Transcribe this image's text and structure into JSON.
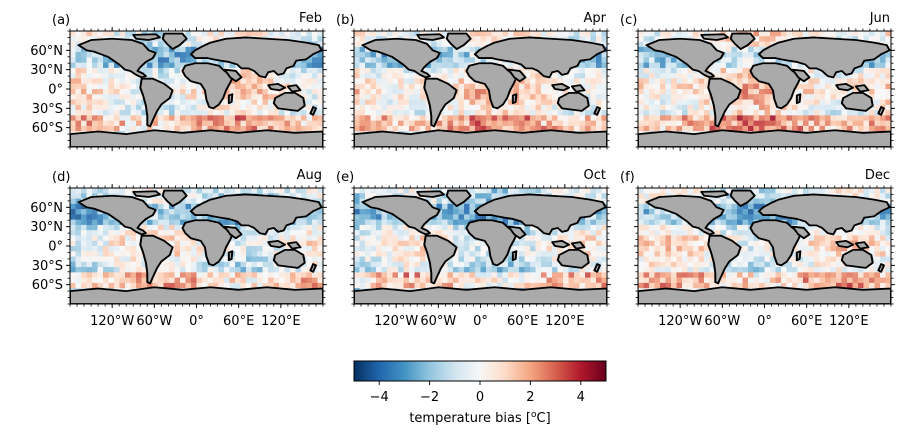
{
  "chart_data": {
    "type": "heatmap",
    "description_units": "temperature bias",
    "panels": [
      {
        "letter": "(a)",
        "month": "Feb"
      },
      {
        "letter": "(b)",
        "month": "Apr"
      },
      {
        "letter": "(c)",
        "month": "Jun"
      },
      {
        "letter": "(d)",
        "month": "Aug"
      },
      {
        "letter": "(e)",
        "month": "Oct"
      },
      {
        "letter": "(f)",
        "month": "Dec"
      }
    ],
    "lat_ticks": [
      "60°N",
      "30°N",
      "0°",
      "30°S",
      "60°S"
    ],
    "lat_tick_values": [
      60,
      30,
      0,
      -30,
      -60
    ],
    "lon_ticks": [
      "120°W",
      "60°W",
      "0°",
      "60°E",
      "120°E"
    ],
    "lon_tick_values": [
      -120,
      -60,
      0,
      60,
      120
    ],
    "xlim": [
      -180,
      180
    ],
    "ylim": [
      -90,
      90
    ],
    "colorbar": {
      "label": "temperature bias [",
      "label_unit": "o",
      "label_end": "C]",
      "ticks": [
        "−4",
        "−2",
        "0",
        "2",
        "4"
      ],
      "tick_values": [
        -4,
        -2,
        0,
        2,
        4
      ],
      "range": [
        -5,
        5
      ],
      "colormap": "RdBu_r",
      "colors": [
        "#053061",
        "#2166ac",
        "#4393c3",
        "#92c5de",
        "#d1e5f0",
        "#f7f7f7",
        "#fddbc7",
        "#f4a582",
        "#d6604d",
        "#b2182b",
        "#67001f"
      ]
    },
    "land_color": "#aaaaaa",
    "coastline_color": "#000000"
  }
}
